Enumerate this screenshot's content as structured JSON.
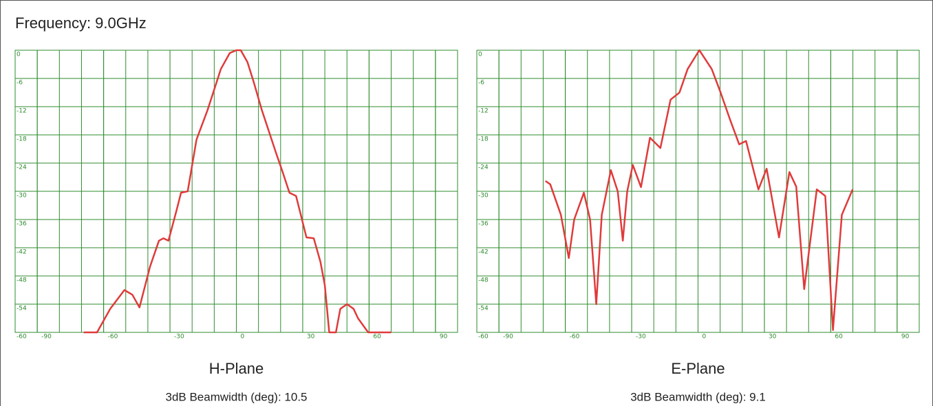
{
  "title": "Frequency: 9.0GHz",
  "chart_data": [
    {
      "type": "line",
      "title": "H-Plane",
      "subtitle": "3dB Beamwidth (deg): 10.5",
      "xlim": [
        -100,
        100
      ],
      "ylim": [
        -60,
        0
      ],
      "xticks": [
        -90,
        -60,
        -30,
        0,
        30,
        60,
        90
      ],
      "yticks": [
        0,
        -6,
        -12,
        -18,
        -24,
        -30,
        -36,
        -42,
        -48,
        -54,
        -60
      ],
      "grid": true,
      "series": [
        {
          "name": "H-Plane",
          "color": "#e03a3a",
          "x": [
            -69,
            -63,
            -57,
            -50.6,
            -47,
            -43.8,
            -39,
            -35,
            -33,
            -30.7,
            -27,
            -25,
            -22,
            -18,
            -13,
            -7,
            -3,
            0,
            2,
            5,
            8,
            11.5,
            17.7,
            21,
            24,
            27,
            31.7,
            35,
            38,
            40,
            42,
            45,
            47,
            50,
            53,
            55,
            59.6,
            70
          ],
          "values": [
            -60,
            -60,
            -55,
            -51,
            -52,
            -54.7,
            -46,
            -40.5,
            -40,
            -40.5,
            -34,
            -30.3,
            -30,
            -19,
            -12.7,
            -4,
            -0.6,
            0,
            0,
            -2.5,
            -7,
            -12.7,
            -21.5,
            -26,
            -30.3,
            -31,
            -39.8,
            -40,
            -45,
            -50,
            -60,
            -60,
            -55,
            -54,
            -55,
            -57,
            -60,
            -60
          ]
        }
      ]
    },
    {
      "type": "line",
      "title": "E-Plane",
      "subtitle": "3dB Beamwidth (deg): 9.1",
      "xlim": [
        -100,
        100
      ],
      "ylim": [
        -60,
        0
      ],
      "xticks": [
        -90,
        -60,
        -30,
        0,
        30,
        60,
        90
      ],
      "yticks": [
        0,
        -6,
        -12,
        -18,
        -24,
        -30,
        -36,
        -42,
        -48,
        -54,
        -60
      ],
      "grid": true,
      "series": [
        {
          "name": "E-Plane",
          "color": "#e03a3a",
          "x": [
            -69,
            -66.8,
            -62,
            -58.4,
            -56,
            -51.6,
            -48.8,
            -46,
            -43.5,
            -39.4,
            -36.3,
            -34,
            -32,
            -29.5,
            -25.8,
            -21.7,
            -17,
            -12.4,
            -8.4,
            -4.7,
            0.6,
            6.2,
            10.2,
            14.6,
            18.6,
            21.7,
            27.3,
            31,
            36.6,
            41.3,
            44.4,
            48,
            53.7,
            57.5,
            61,
            65,
            69.9
          ],
          "values": [
            -27.8,
            -28.5,
            -35,
            -44.2,
            -36,
            -30.3,
            -36,
            -54,
            -35,
            -25.5,
            -30,
            -40.5,
            -30,
            -24.4,
            -29.1,
            -18.6,
            -20.8,
            -10.5,
            -9,
            -4,
            0,
            -4,
            -9,
            -14.9,
            -20,
            -19.3,
            -29.6,
            -25.2,
            -39.8,
            -25.9,
            -29,
            -50.8,
            -29.6,
            -31,
            -59.5,
            -35,
            -29.6
          ]
        }
      ]
    }
  ]
}
